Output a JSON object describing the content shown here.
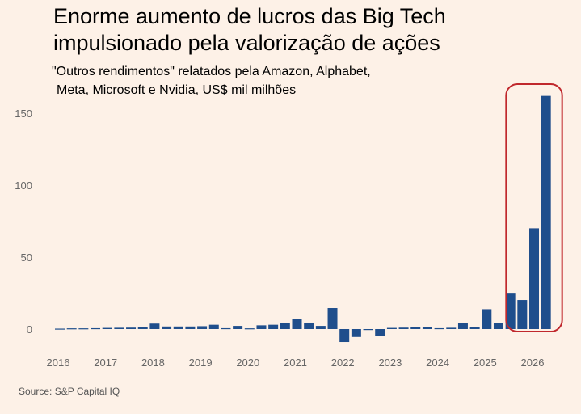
{
  "title": "Enorme aumento de lucros das Big Tech impulsionado pela valorização de ações",
  "subtitle_lines": [
    "\"Outros rendimentos\" relatados pela Amazon, Alphabet,",
    "Meta, Microsoft e Nvidia, US$ mil milhões"
  ],
  "source": "Source: S&P Capital IQ",
  "colors": {
    "background": "#fdf1e7",
    "bar": "#1f4e8c",
    "highlight": "#c0282d",
    "axis_text": "#666666"
  },
  "chart_data": {
    "type": "bar",
    "ylim": [
      -10,
      165
    ],
    "yticks": [
      0,
      50,
      100,
      150
    ],
    "xtick_labels": [
      "2016",
      "2017",
      "2018",
      "2019",
      "2020",
      "2021",
      "2022",
      "2023",
      "2024",
      "2025",
      "2026"
    ],
    "xtick_positions": [
      2016,
      2017,
      2018,
      2019,
      2020,
      2021,
      2022,
      2023,
      2024,
      2025,
      2026
    ],
    "x": [
      2016.0,
      2016.25,
      2016.5,
      2016.75,
      2017.0,
      2017.25,
      2017.5,
      2017.75,
      2018.0,
      2018.25,
      2018.5,
      2018.75,
      2019.0,
      2019.25,
      2019.5,
      2019.75,
      2020.0,
      2020.25,
      2020.5,
      2020.75,
      2021.0,
      2021.25,
      2021.5,
      2021.75,
      2022.0,
      2022.25,
      2022.5,
      2022.75,
      2023.0,
      2023.25,
      2023.5,
      2023.75,
      2024.0,
      2024.25,
      2024.5,
      2024.75,
      2025.0,
      2025.25,
      2025.5,
      2025.75,
      2026.0,
      2026.25
    ],
    "values": [
      0.3,
      0.5,
      0.5,
      0.6,
      0.8,
      0.9,
      1.0,
      1.2,
      3.8,
      1.8,
      1.8,
      1.8,
      2.0,
      3.0,
      0.6,
      2.2,
      0.5,
      2.6,
      3.0,
      4.4,
      6.9,
      4.5,
      2.2,
      14.6,
      -9.0,
      -5.5,
      0.0,
      -4.6,
      0.8,
      1.0,
      1.6,
      1.6,
      0.6,
      0.9,
      4.0,
      1.3,
      13.8,
      4.3,
      25.2,
      20.2,
      70.0,
      162.0
    ],
    "highlight_x_range": [
      2025.75,
      2026.25
    ]
  }
}
